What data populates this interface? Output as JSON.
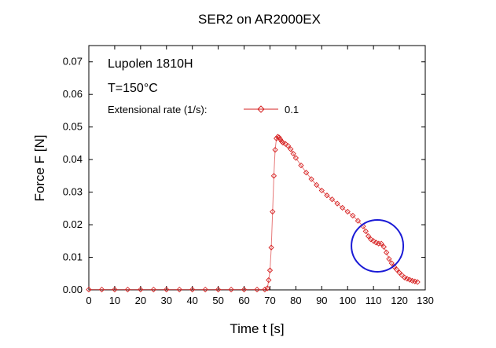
{
  "chart_data": {
    "type": "scatter",
    "title": "SER2 on AR2000EX",
    "xlabel": "Time t [s]",
    "ylabel": "Force F [N]",
    "xlim": [
      0,
      130
    ],
    "ylim": [
      0,
      0.075
    ],
    "x_ticks": [
      "0",
      "10",
      "20",
      "30",
      "40",
      "50",
      "60",
      "70",
      "80",
      "90",
      "100",
      "110",
      "120",
      "130"
    ],
    "y_ticks": [
      "0.00",
      "0.01",
      "0.02",
      "0.03",
      "0.04",
      "0.05",
      "0.06",
      "0.07"
    ],
    "annotations": {
      "material": "Lupolen 1810H",
      "temperature": "T=150°C"
    },
    "legend": {
      "label": "Extensional rate (1/s):",
      "series_name": "0.1",
      "placement": "upper-left"
    },
    "series": [
      {
        "name": "0.1",
        "color": "#d62020",
        "marker": "diamond-open",
        "x": [
          0,
          5,
          10,
          15,
          20,
          25,
          30,
          35,
          40,
          45,
          50,
          55,
          60,
          65,
          68,
          69,
          69.5,
          70,
          70.5,
          71,
          71.5,
          72,
          72.5,
          73,
          73.5,
          74,
          74.5,
          75,
          76,
          77,
          78,
          79,
          80,
          82,
          84,
          86,
          88,
          90,
          92,
          94,
          96,
          98,
          100,
          102,
          104,
          106,
          107,
          108,
          109,
          110,
          111,
          112,
          113,
          114,
          115,
          116,
          117,
          118,
          119,
          120,
          121,
          122,
          123,
          124,
          125,
          126,
          127
        ],
        "y": [
          0.0001,
          0.0001,
          0.0001,
          0.0001,
          0.0001,
          0.0001,
          0.0001,
          0.0001,
          0.0001,
          0.0001,
          0.0001,
          0.0001,
          0.0001,
          0.0001,
          0.0001,
          0.0005,
          0.003,
          0.006,
          0.013,
          0.024,
          0.035,
          0.043,
          0.0465,
          0.047,
          0.0468,
          0.0462,
          0.0456,
          0.0452,
          0.0448,
          0.0442,
          0.0432,
          0.0418,
          0.0405,
          0.0382,
          0.036,
          0.034,
          0.0322,
          0.0305,
          0.029,
          0.0278,
          0.0265,
          0.0252,
          0.024,
          0.0228,
          0.0212,
          0.0195,
          0.018,
          0.0165,
          0.0155,
          0.015,
          0.0145,
          0.0142,
          0.0142,
          0.0132,
          0.0115,
          0.0095,
          0.0082,
          0.0071,
          0.0062,
          0.0053,
          0.0045,
          0.0038,
          0.0034,
          0.0031,
          0.0028,
          0.0026,
          0.0024
        ]
      }
    ],
    "highlight": {
      "shape": "circle",
      "center_x": 111.5,
      "center_y": 0.0135,
      "color": "#1a1ad6"
    },
    "grid": false
  }
}
